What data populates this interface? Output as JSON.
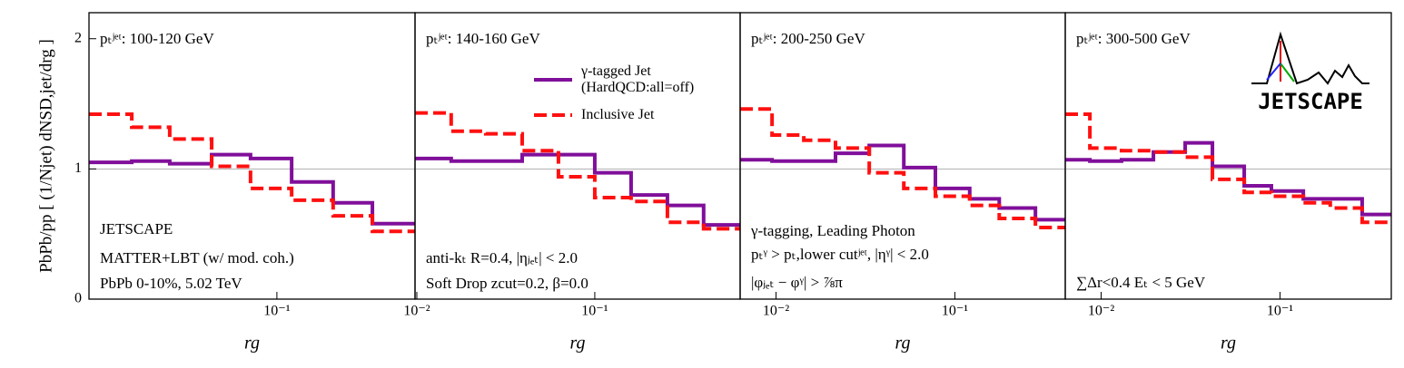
{
  "ylabel": "PbPb/pp [ (1/Njet) dNSD,jet/drg ]",
  "logo": "JETSCAPE",
  "chart_data": [
    {
      "type": "histogram",
      "title": "pₜʲᵉᵗ: 100-120 GeV",
      "xlabel": "rg",
      "xscale": "log",
      "xlim": [
        0.0088,
        0.597
      ],
      "xticks": [
        {
          "value": 0.1,
          "label": "10⁻¹"
        }
      ],
      "ylim": [
        0,
        2.2
      ],
      "yticks": [
        0,
        1,
        2
      ],
      "reference_line": 1,
      "annotations": [
        "JETSCAPE",
        "MATTER+LBT (w/ mod. coh.)",
        "PbPb 0-10%, 5.02 TeV"
      ],
      "bins": [
        0.0088,
        0.0153,
        0.025,
        0.043,
        0.0711,
        0.121,
        0.207,
        0.344,
        0.597
      ],
      "series": [
        {
          "color": "#800f9a",
          "linestyle": "solid",
          "values": [
            1.05,
            1.06,
            1.04,
            1.11,
            1.08,
            0.9,
            0.74,
            0.58
          ]
        },
        {
          "color": "#ff1010",
          "linestyle": "dashed",
          "values": [
            1.42,
            1.32,
            1.23,
            1.02,
            0.85,
            0.76,
            0.64,
            0.52
          ]
        }
      ]
    },
    {
      "type": "histogram",
      "title": "pₜʲᵉᵗ: 140-160 GeV",
      "xlabel": "rg",
      "xscale": "log",
      "xlim": [
        0.00977,
        0.656
      ],
      "xticks": [
        {
          "value": 0.01,
          "label": "10⁻²"
        },
        {
          "value": 0.1,
          "label": "10⁻¹"
        }
      ],
      "ylim": [
        0,
        2.2
      ],
      "reference_line": 1,
      "legend": "upper right",
      "annotations": [
        "anti-kₜ R=0.4, |ηⱼₑₜ| < 2.0",
        "Soft Drop zcut=0.2, β=0.0"
      ],
      "bins": [
        0.00977,
        0.0156,
        0.0244,
        0.0391,
        0.0625,
        0.1,
        0.16,
        0.256,
        0.409,
        0.656
      ],
      "series": [
        {
          "name": "γ-tagged Jet\n(HardQCD:all=off)",
          "color": "#800f9a",
          "linestyle": "solid",
          "values": [
            1.08,
            1.06,
            1.06,
            1.11,
            1.11,
            0.97,
            0.8,
            0.72,
            0.57
          ]
        },
        {
          "name": "Inclusive Jet",
          "color": "#ff1010",
          "linestyle": "dashed",
          "values": [
            1.43,
            1.29,
            1.27,
            1.14,
            0.94,
            0.78,
            0.75,
            0.59,
            0.54
          ]
        }
      ]
    },
    {
      "type": "histogram",
      "title": "pₜʲᵉᵗ: 200-250 GeV",
      "xlabel": "rg",
      "xscale": "log",
      "xlim": [
        0.0063,
        0.414
      ],
      "xticks": [
        {
          "value": 0.01,
          "label": "10⁻²"
        },
        {
          "value": 0.1,
          "label": "10⁻¹"
        }
      ],
      "ylim": [
        0,
        2.2
      ],
      "reference_line": 1,
      "annotations": [
        "γ-tagging, Leading Photon",
        "pₜᵞ > pₜ,lower cutʲᵉᵗ, |ηᵞ| < 2.0",
        "|φⱼₑₜ − φᵞ| > ⅞π"
      ],
      "bins": [
        0.0063,
        0.0095,
        0.0143,
        0.0215,
        0.0332,
        0.0518,
        0.0778,
        0.121,
        0.177,
        0.282,
        0.414
      ],
      "series": [
        {
          "color": "#800f9a",
          "linestyle": "solid",
          "values": [
            1.07,
            1.06,
            1.06,
            1.12,
            1.18,
            1.01,
            0.85,
            0.77,
            0.7,
            0.61
          ]
        },
        {
          "color": "#ff1010",
          "linestyle": "dashed",
          "values": [
            1.46,
            1.26,
            1.22,
            1.16,
            0.97,
            0.85,
            0.79,
            0.72,
            0.62,
            0.55
          ]
        }
      ]
    },
    {
      "type": "histogram",
      "title": "pₜʲᵉᵗ: 300-500 GeV",
      "xlabel": "rg",
      "xscale": "log",
      "xlim": [
        0.0063,
        0.419
      ],
      "xticks": [
        {
          "value": 0.01,
          "label": "10⁻²"
        },
        {
          "value": 0.1,
          "label": "10⁻¹"
        }
      ],
      "ylim": [
        0,
        2.2
      ],
      "reference_line": 1,
      "annotations": [
        "∑Δr<0.4 Eₜ < 5 GeV"
      ],
      "bins": [
        0.0063,
        0.00865,
        0.013,
        0.0196,
        0.0295,
        0.0419,
        0.0631,
        0.0895,
        0.135,
        0.191,
        0.288,
        0.419
      ],
      "series": [
        {
          "color": "#800f9a",
          "linestyle": "solid",
          "values": [
            1.07,
            1.06,
            1.07,
            1.13,
            1.2,
            1.02,
            0.87,
            0.83,
            0.77,
            0.77,
            0.65
          ]
        },
        {
          "color": "#ff1010",
          "linestyle": "dashed",
          "values": [
            1.42,
            1.16,
            1.14,
            1.13,
            1.09,
            0.92,
            0.82,
            0.79,
            0.74,
            0.7,
            0.59
          ]
        }
      ]
    }
  ]
}
